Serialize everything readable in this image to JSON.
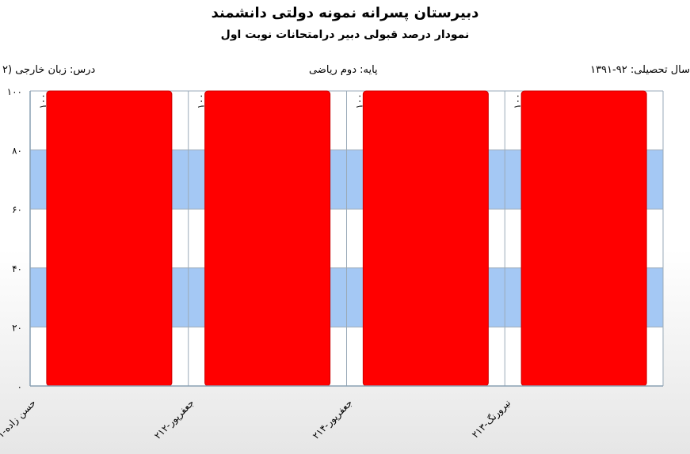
{
  "header": {
    "title": "دبیرستان پسرانه نمونه دولتی دانشمند",
    "subtitle": "نمودار درصد قبولی دبیر درامتحانات نوبت اول"
  },
  "info": {
    "course": "درس: زبان  خارجی (۲",
    "grade": "پایه: دوم ریاضی",
    "year": "سال تحصیلی: ۹۲-۱۳۹۱"
  },
  "colors": {
    "bar": "#ff0000",
    "band": "#a4c8f4",
    "grid": "#9aaab8"
  },
  "chart_data": {
    "type": "bar",
    "categories": [
      "حسن زاده-۲۱۱",
      "جعفرپور-۲۱۲",
      "جعفرپور-۲۱۴",
      "نیرورنگ-۲۱۳"
    ],
    "values": [
      100,
      100,
      100,
      100
    ],
    "data_labels": [
      "۱۰۰",
      "۱۰۰",
      "۱۰۰",
      "۱۰۰"
    ],
    "ylim": [
      0,
      100
    ],
    "yticks": [
      0,
      20,
      40,
      60,
      80,
      100
    ],
    "ytick_labels": [
      "۰",
      "۲۰",
      "۴۰",
      "۶۰",
      "۸۰",
      "۱۰۰"
    ],
    "grid": true,
    "legend": "none"
  }
}
